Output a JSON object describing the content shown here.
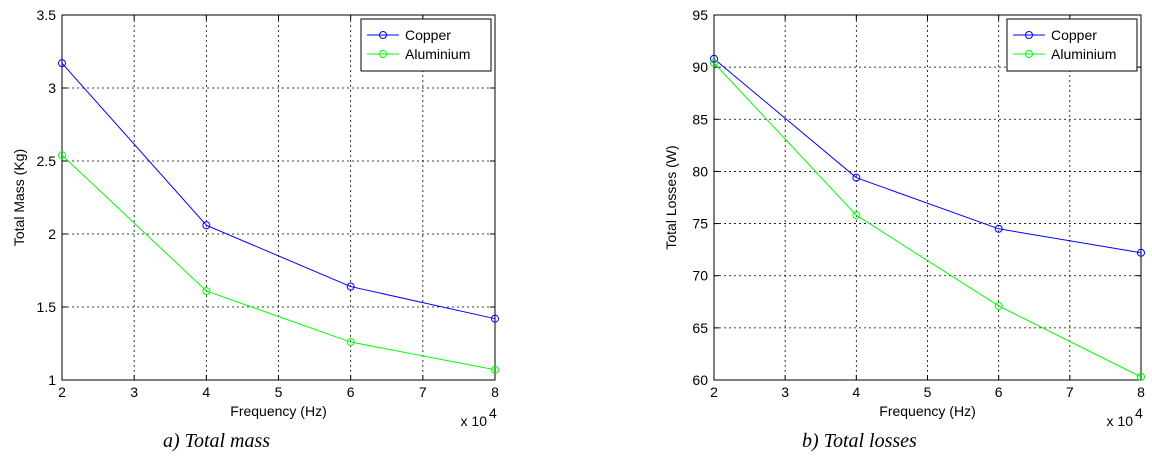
{
  "chart_data": [
    {
      "type": "line",
      "caption": "a) Total mass",
      "xlabel": "Frequency (Hz)",
      "ylabel": "Total Mass (Kg)",
      "x_multiplier_base": "x 10",
      "x_multiplier_exp": "4",
      "x": [
        20000,
        40000,
        60000,
        80000
      ],
      "xlim": [
        20000,
        80000
      ],
      "ylim": [
        1,
        3.5
      ],
      "x_ticks": [
        2,
        3,
        4,
        5,
        6,
        7,
        8
      ],
      "x_tick_labels": [
        "2",
        "3",
        "4",
        "5",
        "6",
        "7",
        "8"
      ],
      "y_ticks": [
        1,
        1.5,
        2,
        2.5,
        3,
        3.5
      ],
      "y_tick_labels": [
        "1",
        "1.5",
        "2",
        "2.5",
        "3",
        "3.5"
      ],
      "grid": true,
      "legend_position": "top-right",
      "series": [
        {
          "name": "Copper",
          "color": "#0000ff",
          "marker": "circle",
          "values": [
            3.17,
            2.06,
            1.64,
            1.42
          ]
        },
        {
          "name": "Aluminium",
          "color": "#00ff00",
          "marker": "circle",
          "values": [
            2.54,
            1.61,
            1.26,
            1.07
          ]
        }
      ]
    },
    {
      "type": "line",
      "caption": "b) Total losses",
      "xlabel": "Frequency (Hz)",
      "ylabel": "Total Losses (W)",
      "x_multiplier_base": "x 10",
      "x_multiplier_exp": "4",
      "x": [
        20000,
        40000,
        60000,
        80000
      ],
      "xlim": [
        20000,
        80000
      ],
      "ylim": [
        60,
        95
      ],
      "x_ticks": [
        2,
        3,
        4,
        5,
        6,
        7,
        8
      ],
      "x_tick_labels": [
        "2",
        "3",
        "4",
        "5",
        "6",
        "7",
        "8"
      ],
      "y_ticks": [
        60,
        65,
        70,
        75,
        80,
        85,
        90,
        95
      ],
      "y_tick_labels": [
        "60",
        "65",
        "70",
        "75",
        "80",
        "85",
        "90",
        "95"
      ],
      "grid": true,
      "legend_position": "top-right",
      "series": [
        {
          "name": "Copper",
          "color": "#0000ff",
          "marker": "circle",
          "values": [
            90.8,
            79.4,
            74.5,
            72.2
          ]
        },
        {
          "name": "Aluminium",
          "color": "#00ff00",
          "marker": "circle",
          "values": [
            90.4,
            75.8,
            67.1,
            60.3
          ]
        }
      ]
    }
  ]
}
